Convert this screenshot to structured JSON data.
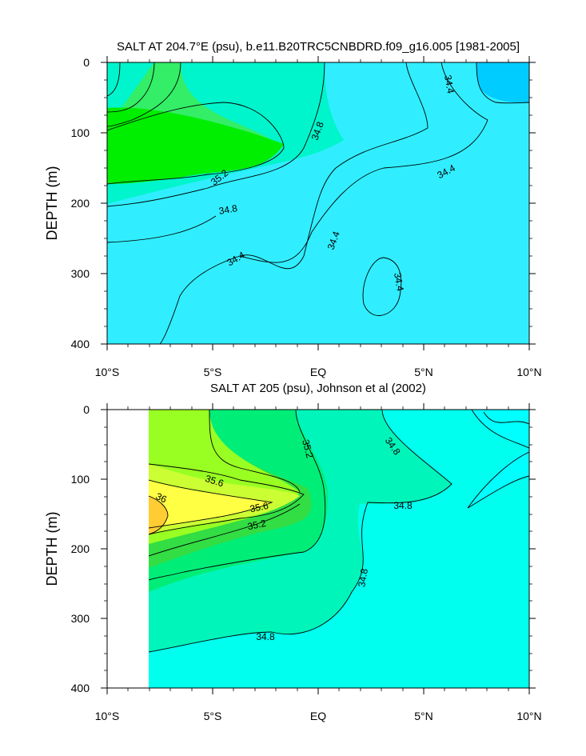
{
  "chart_data": [
    {
      "type": "contour",
      "title": "SALT AT 204.7°E (psu), b.e11.B20TRC5CNBDRD.f09_g16.005 [1981-2005]",
      "xlabel": "",
      "ylabel": "DEPTH (m)",
      "x_range": [
        "10°S",
        "10°N"
      ],
      "y_range_m": [
        0,
        400
      ],
      "y_inverted": true,
      "x_ticks": [
        "10°S",
        "5°S",
        "EQ",
        "5°N",
        "10°N"
      ],
      "y_ticks": [
        "0",
        "100",
        "200",
        "300",
        "400"
      ],
      "contour_labels": [
        "34.4",
        "34.8",
        "35.2",
        "34.8",
        "34.4",
        "34.4",
        "34.4",
        "34.4"
      ],
      "fill_colors": {
        "lt34.4": "#00ccff",
        "34.4-34.8": "#30eeff",
        "34.8-35.0": "#00f5cc",
        "35.0-35.2": "#33ee66",
        "gt35.2": "#00ee00"
      }
    },
    {
      "type": "contour",
      "title": "SALT AT 205 (psu), Johnson et al (2002)",
      "xlabel": "",
      "ylabel": "DEPTH (m)",
      "x_range": [
        "10°S",
        "10°N"
      ],
      "y_range_m": [
        0,
        400
      ],
      "y_inverted": true,
      "data_x_start": "8°S",
      "x_ticks": [
        "10°S",
        "5°S",
        "EQ",
        "5°N",
        "10°N"
      ],
      "y_ticks": [
        "0",
        "100",
        "200",
        "300",
        "400"
      ],
      "contour_labels": [
        "35.2",
        "34.8",
        "35.6",
        "36",
        "35.6",
        "35.2",
        "34.8",
        "34.8",
        "34.8"
      ],
      "fill_colors": {
        "34.4-34.8": "#00ffee",
        "34.8-35.0": "#00f5bb",
        "35.0-35.2": "#00ee77",
        "35.2-35.4": "#33dd44",
        "35.4-35.6": "#99ff22",
        "35.6-35.8": "#ccff33",
        "35.8-36.0": "#ffff44",
        "gt36.0": "#ffcc33"
      }
    }
  ]
}
